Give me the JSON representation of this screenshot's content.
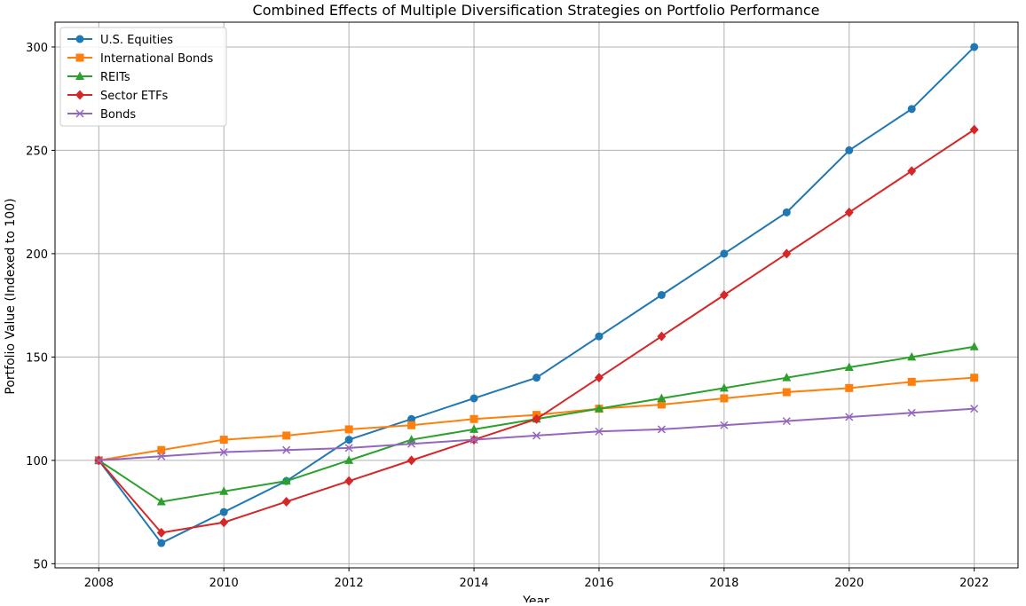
{
  "chart_data": {
    "type": "line",
    "title": "Combined Effects of Multiple Diversification Strategies on Portfolio Performance",
    "xlabel": "Year",
    "ylabel": "Portfolio Value (Indexed to 100)",
    "x": [
      2008,
      2009,
      2010,
      2011,
      2012,
      2013,
      2014,
      2015,
      2016,
      2017,
      2018,
      2019,
      2020,
      2021,
      2022
    ],
    "xlim": [
      2007.3,
      2022.7
    ],
    "ylim": [
      48,
      312
    ],
    "x_ticks": [
      2008,
      2010,
      2012,
      2014,
      2016,
      2018,
      2020,
      2022
    ],
    "y_ticks": [
      50,
      100,
      150,
      200,
      250,
      300
    ],
    "grid": true,
    "legend_position": "upper-left",
    "series": [
      {
        "name": "U.S. Equities",
        "color": "#1f77b4",
        "marker": "circle",
        "values": [
          100,
          60,
          75,
          90,
          110,
          120,
          130,
          140,
          160,
          180,
          200,
          220,
          250,
          270,
          300
        ]
      },
      {
        "name": "International Bonds",
        "color": "#ff7f0e",
        "marker": "square",
        "values": [
          100,
          105,
          110,
          112,
          115,
          117,
          120,
          122,
          125,
          127,
          130,
          133,
          135,
          138,
          140
        ]
      },
      {
        "name": "REITs",
        "color": "#2ca02c",
        "marker": "triangle",
        "values": [
          100,
          80,
          85,
          90,
          100,
          110,
          115,
          120,
          125,
          130,
          135,
          140,
          145,
          150,
          155
        ]
      },
      {
        "name": "Sector ETFs",
        "color": "#d62728",
        "marker": "diamond",
        "values": [
          100,
          65,
          70,
          80,
          90,
          100,
          110,
          120,
          140,
          160,
          180,
          200,
          220,
          240,
          260
        ]
      },
      {
        "name": "Bonds",
        "color": "#9467bd",
        "marker": "x",
        "values": [
          100,
          102,
          104,
          105,
          106,
          108,
          110,
          112,
          114,
          115,
          117,
          119,
          121,
          123,
          125
        ]
      }
    ]
  }
}
